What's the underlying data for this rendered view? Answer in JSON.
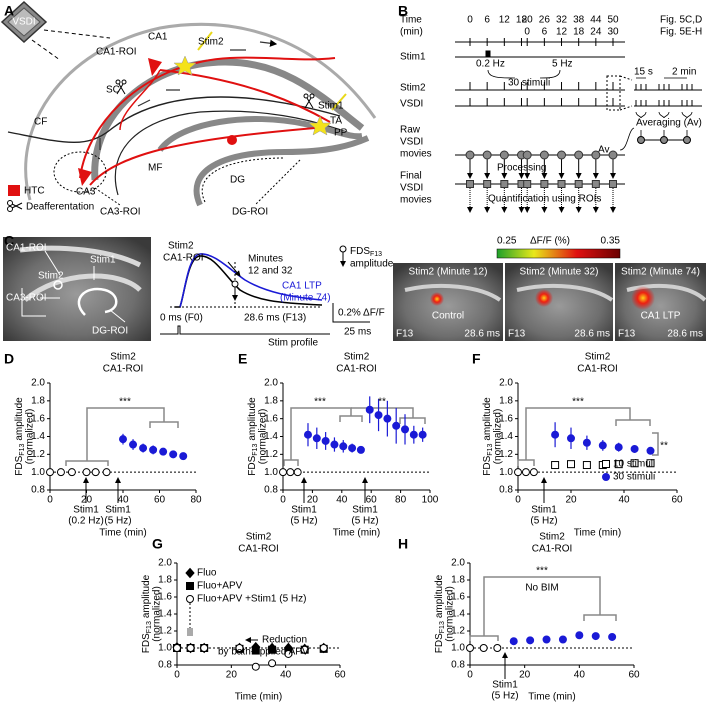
{
  "panel_labels": [
    "A",
    "B",
    "C",
    "D",
    "E",
    "F",
    "G",
    "H"
  ],
  "panel_a": {
    "camera": "VSDI",
    "ca1": "CA1",
    "ca1_roi": "CA1-ROI",
    "stim2": "Stim2",
    "sc": "SC",
    "cf": "CF",
    "ca3": "CA3",
    "mf": "MF",
    "dg": "DG",
    "stim1": "Stim1",
    "ta": "TA",
    "pp": "PP",
    "legend": [
      "HTC",
      "Deafferentation"
    ],
    "ca3_roi": "CA3-ROI",
    "dg_roi": "DG-ROI"
  },
  "panel_b": {
    "time_label": [
      "Time",
      "(min)"
    ],
    "times_5cd": [
      0,
      6,
      12,
      18,
      20,
      26,
      32,
      38,
      44,
      50
    ],
    "fig_5cd": "Fig. 5C,D",
    "times_5eh": [
      0,
      6,
      12,
      18,
      24,
      30
    ],
    "fig_5eh": "Fig. 5E-H",
    "rows": [
      "Stim1",
      "Stim2",
      "VSDI"
    ],
    "stim1_labels": [
      "0.2 Hz",
      "30 stimuli",
      "5 Hz"
    ],
    "interval_labels": [
      "15 s",
      "2 min"
    ],
    "averaging": "Averaging (Av)",
    "raw": [
      "Raw",
      "VSDI",
      "movies"
    ],
    "av": "Av",
    "processing": "Processing",
    "final": [
      "Final",
      "VSDI",
      "movies"
    ],
    "quantification": "Quantification using ROIs"
  },
  "panel_c": {
    "slice_labels": [
      "CA1-ROI",
      "Stim1",
      "Stim2",
      "CA3-ROI",
      "DG-ROI"
    ],
    "trace_title": [
      "Stim2",
      "CA1-ROI"
    ],
    "minutes": [
      "Minutes",
      "12 and 32"
    ],
    "ltp": [
      "CA1 LTP",
      "(Minute 74)"
    ],
    "fds": [
      "FDS",
      "F13",
      "amplitude"
    ],
    "f0": "0 ms (F0)",
    "f13": "28.6 ms (F13)",
    "stim_profile": "Stim profile",
    "scale_y": "0.2% ΔF/F",
    "scale_x": "25 ms",
    "colorbar_range": [
      0.25,
      0.35
    ],
    "colorbar_label": "ΔF/F (%)",
    "images": [
      {
        "title": "Stim2 (Minute 12)",
        "label": "Control",
        "frame": "F13",
        "time": "28.6 ms"
      },
      {
        "title": "Stim2 (Minute 32)",
        "frame": "F13",
        "time": "28.6 ms"
      },
      {
        "title": "Stim2 (Minute 74)",
        "label": "CA1 LTP",
        "frame": "F13",
        "time": "28.6 ms"
      }
    ]
  },
  "chart_data": [
    {
      "type": "scatter",
      "title": [
        "Stim2",
        "CA1-ROI"
      ],
      "xlabel": "Time (min)",
      "ylabel": [
        "FDS",
        "F13",
        "amplitude",
        "(normalized)"
      ],
      "xlim": [
        0,
        80
      ],
      "xticks": [
        0,
        20,
        40,
        60,
        80
      ],
      "ylim": [
        0.8,
        2.0
      ],
      "yticks": [
        0.8,
        {
          "value": 1,
          "label": "1.0"
        },
        1.2,
        1.4,
        1.6,
        1.8,
        {
          "value": 2,
          "label": "2.0"
        }
      ],
      "refline": 1,
      "series": [
        {
          "color": "#000000",
          "marker": "open-circle",
          "x": [
            0,
            6,
            12,
            20,
            25,
            31
          ],
          "values": [
            1,
            1,
            1,
            1,
            1,
            1
          ]
        },
        {
          "color": "#1a1ad6",
          "marker": "filled-circle",
          "x": [
            40,
            45.5,
            51,
            56.5,
            62,
            67.5,
            73
          ],
          "values": [
            1.37,
            1.31,
            1.27,
            1.25,
            1.23,
            1.2,
            1.18
          ],
          "errors": [
            0.06,
            0.06,
            0.05,
            0.05,
            0.04,
            0.04,
            0.04
          ]
        }
      ],
      "annotations": [
        "***",
        "Stim1",
        "(0.2 Hz)",
        "Stim1",
        "(5 Hz)"
      ]
    },
    {
      "type": "scatter",
      "title": [
        "Stim2",
        "CA1-ROI"
      ],
      "xlabel": "Time (min)",
      "ylabel": [
        "FDS",
        "F13",
        "amplitude",
        "(normalized)"
      ],
      "xlim": [
        0,
        100
      ],
      "xticks": [
        0,
        20,
        40,
        60,
        80,
        100
      ],
      "ylim": [
        0.8,
        2.0
      ],
      "yticks": [
        0.8,
        {
          "value": 1,
          "label": "1.0"
        },
        1.2,
        1.4,
        1.6,
        1.8,
        {
          "value": 2,
          "label": "2.0"
        }
      ],
      "refline": 1,
      "series": [
        {
          "color": "#000000",
          "marker": "open-circle",
          "x": [
            0,
            5,
            10
          ],
          "values": [
            1,
            1,
            1
          ]
        },
        {
          "color": "#1a1ad6",
          "marker": "filled-circle",
          "x": [
            17,
            23,
            29,
            35,
            41,
            47,
            53,
            59,
            65,
            71,
            77,
            83,
            89,
            95
          ],
          "values": [
            1.42,
            1.38,
            1.35,
            1.31,
            1.29,
            1.27,
            1.25,
            1.7,
            1.64,
            1.6,
            1.52,
            1.48,
            1.42,
            1.42
          ],
          "errors": [
            0.13,
            0.12,
            0.1,
            0.08,
            0.07,
            0.05,
            0.04,
            0.15,
            0.18,
            0.2,
            0.2,
            0.17,
            0.1,
            0.08
          ]
        }
      ],
      "annotations": [
        "***",
        "**",
        "Stim1",
        "(5 Hz)",
        "Stim1",
        "(5 Hz)"
      ]
    },
    {
      "type": "scatter",
      "title": [
        "Stim2",
        "CA1-ROI"
      ],
      "xlabel": "Time (min)",
      "ylabel": [
        "FDS",
        "F13",
        "amplitude",
        "(normalized)"
      ],
      "xlim": [
        0,
        60
      ],
      "xticks": [
        0,
        20,
        40,
        60
      ],
      "ylim": [
        0.8,
        2.0
      ],
      "yticks": [
        0.8,
        {
          "value": 1,
          "label": "1.0"
        },
        1.2,
        1.4,
        1.6,
        1.8,
        {
          "value": 2,
          "label": "2.0"
        }
      ],
      "refline": 1,
      "series": [
        {
          "color": "#000000",
          "marker": "open-circle",
          "x": [
            0,
            3,
            6
          ],
          "values": [
            1,
            1,
            1
          ]
        },
        {
          "name": "10 stimuli",
          "color": "#000000",
          "marker": "open-square",
          "x": [
            14,
            20,
            26,
            32,
            38,
            44,
            50
          ],
          "values": [
            1.08,
            1.09,
            1.08,
            1.08,
            1.09,
            1.1,
            1.1
          ],
          "errors": [
            0.03,
            0.03,
            0.03,
            0.03,
            0.03,
            0.03,
            0.03
          ]
        },
        {
          "name": "30 stimuli",
          "color": "#1a1ad6",
          "marker": "filled-circle",
          "x": [
            14,
            20,
            26,
            32,
            38,
            44,
            50
          ],
          "values": [
            1.42,
            1.38,
            1.33,
            1.3,
            1.28,
            1.26,
            1.24
          ],
          "errors": [
            0.14,
            0.12,
            0.08,
            0.06,
            0.05,
            0.04,
            0.03
          ]
        }
      ],
      "annotations": [
        "***",
        "**",
        "Stim1",
        "(5 Hz)"
      ]
    },
    {
      "type": "scatter",
      "title": [
        "Stim2",
        "CA1-ROI"
      ],
      "xlabel": "Time (min)",
      "ylabel": [
        "FDS",
        "F13",
        "amplitude",
        "(normalized)"
      ],
      "xlim": [
        0,
        60
      ],
      "xticks": [
        0,
        20,
        40,
        60
      ],
      "ylim": [
        0.8,
        2.0
      ],
      "yticks": [
        0.8,
        {
          "value": 1,
          "label": "1.0"
        },
        1.2,
        1.4,
        1.6,
        1.8,
        {
          "value": 2,
          "label": "2.0"
        }
      ],
      "refline": 1,
      "series": [
        {
          "name": "Fluo",
          "color": "#000000",
          "marker": "diamond",
          "x": [
            0,
            5,
            10,
            23,
            29,
            35,
            41,
            47,
            54
          ],
          "values": [
            1.01,
            1,
            1,
            1,
            1.01,
            1,
            1,
            0.99,
            1
          ]
        },
        {
          "name": "Fluo+APV",
          "color": "#000000",
          "marker": "filled-square",
          "x": [
            0,
            5,
            10,
            23,
            29,
            35,
            41,
            47,
            54
          ],
          "values": [
            1,
            1,
            1,
            0.99,
            0.97,
            0.98,
            0.96,
            0.98,
            0.99
          ]
        },
        {
          "name": "Fluo+APV +Stim1 (5 Hz)",
          "color": "#000000",
          "marker": "open-circle",
          "x": [
            0,
            5,
            10,
            23,
            29,
            35,
            41,
            47,
            54
          ],
          "values": [
            1,
            1,
            1,
            1,
            0.78,
            0.82,
            0.93,
            0.98,
            1
          ]
        }
      ],
      "annotations": [
        "Reduction",
        "by bath-applied APV"
      ]
    },
    {
      "type": "scatter",
      "title": [
        "Stim2",
        "CA1-ROI"
      ],
      "xlabel": "Time (min)",
      "ylabel": [
        "FDS",
        "F13",
        "amplitude",
        "(normalized)"
      ],
      "xlim": [
        0,
        60
      ],
      "xticks": [
        0,
        20,
        40,
        60
      ],
      "ylim": [
        0.8,
        2.0
      ],
      "yticks": [
        0.8,
        {
          "value": 1,
          "label": "1.0"
        },
        1.2,
        1.4,
        1.6,
        1.8,
        {
          "value": 2,
          "label": "2.0"
        }
      ],
      "refline": 1,
      "series": [
        {
          "color": "#000000",
          "marker": "open-circle",
          "x": [
            0,
            5,
            10
          ],
          "values": [
            1,
            1,
            1
          ]
        },
        {
          "color": "#1a1ad6",
          "marker": "filled-circle",
          "x": [
            16,
            22,
            28,
            34,
            40,
            46,
            52
          ],
          "values": [
            1.08,
            1.09,
            1.1,
            1.1,
            1.15,
            1.14,
            1.13
          ],
          "errors": [
            0.02,
            0.02,
            0.02,
            0.02,
            0.03,
            0.03,
            0.02
          ]
        }
      ],
      "annotations": [
        "***",
        "No BIM",
        "Stim1",
        "(5 Hz)"
      ]
    }
  ]
}
